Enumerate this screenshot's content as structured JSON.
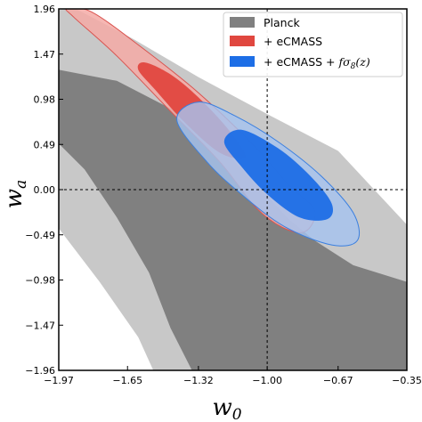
{
  "chart_data": {
    "type": "contour",
    "xlim": [
      -1.97,
      -0.35
    ],
    "ylim": [
      -1.96,
      1.96
    ],
    "xticks": [
      -1.97,
      -1.65,
      -1.32,
      -1.0,
      -0.67,
      -0.35
    ],
    "xtick_labels": [
      "−1.97",
      "−1.65",
      "−1.32",
      "−1.00",
      "−0.67",
      "−0.35"
    ],
    "yticks": [
      -1.96,
      -1.47,
      -0.98,
      -0.49,
      0.0,
      0.49,
      0.98,
      1.47,
      1.96
    ],
    "ytick_labels": [
      "−1.96",
      "−1.47",
      "−0.98",
      "−0.49",
      "0.00",
      "0.49",
      "0.98",
      "1.47",
      "1.96"
    ],
    "xlabel": "w",
    "xlabel_sub": "0",
    "ylabel": "w",
    "ylabel_sub": "a",
    "reference_lines": {
      "x": -1.0,
      "y": 0.0
    },
    "legend_position": "top-right",
    "series": [
      {
        "name": "Planck",
        "label_parts": [
          "Planck"
        ],
        "color_outer": "#c8c8c8",
        "color_inner": "#808080",
        "outer_contour": [
          [
            -1.97,
            1.95
          ],
          [
            -1.89,
            1.96
          ],
          [
            -1.62,
            1.63
          ],
          [
            -1.32,
            1.22
          ],
          [
            -1.0,
            0.82
          ],
          [
            -0.67,
            0.42
          ],
          [
            -0.35,
            -0.38
          ],
          [
            -0.35,
            -1.96
          ],
          [
            -1.53,
            -1.96
          ],
          [
            -1.6,
            -1.6
          ],
          [
            -1.78,
            -1.0
          ],
          [
            -1.97,
            -0.42
          ]
        ],
        "inner_contour": [
          [
            -1.97,
            1.3
          ],
          [
            -1.7,
            1.18
          ],
          [
            -1.45,
            0.88
          ],
          [
            -1.2,
            0.43
          ],
          [
            -1.05,
            0.05
          ],
          [
            -0.9,
            -0.32
          ],
          [
            -0.78,
            -0.55
          ],
          [
            -0.6,
            -0.82
          ],
          [
            -0.35,
            -1.0
          ],
          [
            -0.35,
            -1.96
          ],
          [
            -1.35,
            -1.96
          ],
          [
            -1.45,
            -1.5
          ],
          [
            -1.55,
            -0.9
          ],
          [
            -1.7,
            -0.3
          ],
          [
            -1.85,
            0.22
          ],
          [
            -1.97,
            0.5
          ]
        ]
      },
      {
        "name": "+ eCMASS",
        "label_parts": [
          "+ eCMASS"
        ],
        "color_outer": "#f4aaa6",
        "color_inner": "#e0473f",
        "outer_contour": [
          [
            -1.93,
            1.96
          ],
          [
            -1.82,
            1.93
          ],
          [
            -1.6,
            1.57
          ],
          [
            -1.32,
            1.05
          ],
          [
            -1.05,
            0.45
          ],
          [
            -0.9,
            0.05
          ],
          [
            -0.78,
            -0.22
          ],
          [
            -0.82,
            -0.45
          ],
          [
            -0.92,
            -0.42
          ],
          [
            -1.05,
            -0.2
          ],
          [
            -1.22,
            0.3
          ],
          [
            -1.45,
            0.85
          ],
          [
            -1.7,
            1.45
          ],
          [
            -1.9,
            1.87
          ]
        ],
        "inner_contour": [
          [
            -1.57,
            1.38
          ],
          [
            -1.45,
            1.25
          ],
          [
            -1.32,
            1.0
          ],
          [
            -1.18,
            0.65
          ],
          [
            -1.1,
            0.35
          ],
          [
            -1.22,
            0.4
          ],
          [
            -1.38,
            0.72
          ],
          [
            -1.52,
            1.08
          ],
          [
            -1.6,
            1.3
          ]
        ]
      },
      {
        "name": "+ eCMASS + fσ₈(z)",
        "label_parts": [
          "+ eCMASS + ",
          "fσ",
          "8",
          "(z)"
        ],
        "color_outer": "#a6c3ef",
        "color_inner": "#1d6ee6",
        "outer_contour": [
          [
            -1.32,
            0.95
          ],
          [
            -1.15,
            0.8
          ],
          [
            -0.95,
            0.52
          ],
          [
            -0.75,
            0.15
          ],
          [
            -0.6,
            -0.25
          ],
          [
            -0.58,
            -0.55
          ],
          [
            -0.7,
            -0.6
          ],
          [
            -0.92,
            -0.4
          ],
          [
            -1.12,
            -0.05
          ],
          [
            -1.28,
            0.3
          ],
          [
            -1.42,
            0.75
          ]
        ],
        "inner_contour": [
          [
            -1.12,
            0.65
          ],
          [
            -0.95,
            0.45
          ],
          [
            -0.8,
            0.15
          ],
          [
            -0.7,
            -0.15
          ],
          [
            -0.72,
            -0.32
          ],
          [
            -0.85,
            -0.3
          ],
          [
            -1.0,
            -0.05
          ],
          [
            -1.12,
            0.25
          ],
          [
            -1.2,
            0.52
          ]
        ]
      }
    ]
  }
}
